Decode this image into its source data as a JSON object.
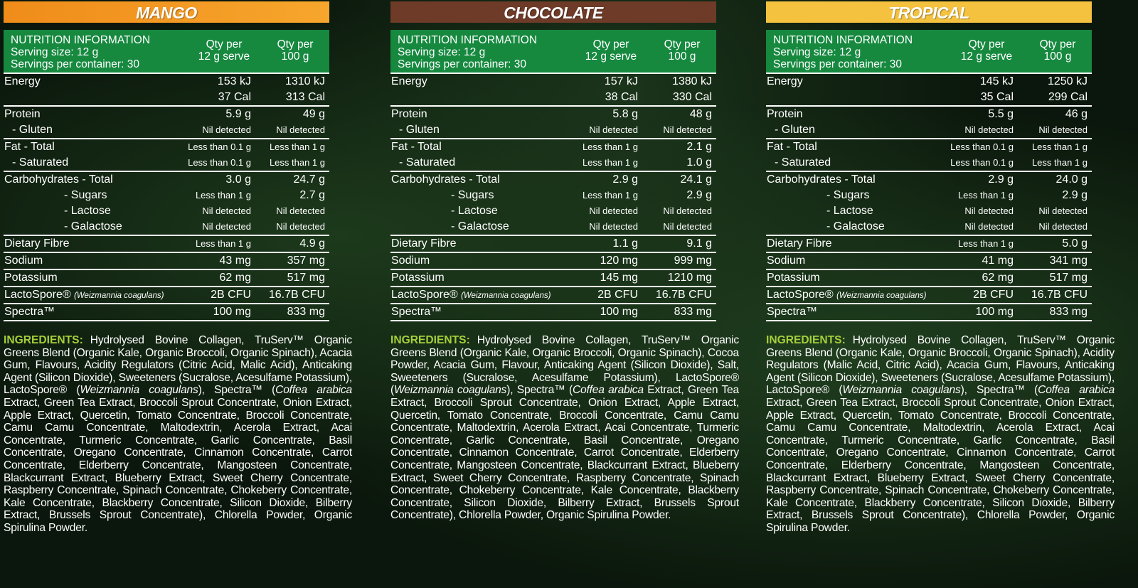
{
  "panels": [
    {
      "title": "MANGO",
      "table": {
        "header": {
          "info": [
            "NUTRITION INFORMATION",
            "Serving size: 12 g",
            "Servings per container: 30"
          ],
          "serve": [
            "Qty per",
            "12 g serve"
          ],
          "per100": [
            "Qty per",
            "100 g"
          ]
        },
        "sections": [
          [
            {
              "label": "Energy",
              "serve": "153 kJ",
              "per100": "1310 kJ"
            },
            {
              "serve": "37 Cal",
              "per100": "313 Cal"
            }
          ],
          [
            {
              "label": "Protein",
              "serve": "5.9 g",
              "per100": "49 g"
            },
            {
              "label": "- Gluten",
              "serve": "Nil detected",
              "per100": "Nil detected"
            }
          ],
          [
            {
              "label": "Fat - Total",
              "serve": "Less than 0.1 g",
              "per100": "Less than 1 g"
            },
            {
              "label": "- Saturated",
              "serve": "Less than 0.1 g",
              "per100": "Less than 1 g"
            }
          ],
          [
            {
              "label": "Carbohydrates  - Total",
              "serve": "3.0 g",
              "per100": "24.7 g"
            },
            {
              "label": "- Sugars",
              "serve": "Less than 1 g",
              "per100": "2.7 g"
            },
            {
              "label": "- Lactose",
              "serve": "Nil detected",
              "per100": "Nil detected"
            },
            {
              "label": "- Galactose",
              "serve": "Nil detected",
              "per100": "Nil detected"
            }
          ],
          [
            {
              "label": "Dietary Fibre",
              "serve": "Less than 1 g",
              "per100": "4.9 g"
            }
          ],
          [
            {
              "label": "Sodium",
              "serve": "43 mg",
              "per100": "357 mg"
            }
          ],
          [
            {
              "label": "Potassium",
              "serve": "62 mg",
              "per100": "517 mg"
            }
          ],
          [
            {
              "label": "LactoSpore®",
              "note": "(Weizmannia coagulans)",
              "serve": "2B CFU",
              "per100": "16.7B CFU"
            }
          ],
          [
            {
              "label": "Spectra™",
              "serve": "100 mg",
              "per100": "833 mg"
            }
          ]
        ]
      },
      "ingredients": {
        "label": "INGREDIENTS:",
        "text": [
          "Hydrolysed Bovine Collagen, TruServ™ Organic Greens Blend (Organic Kale, Organic Broccoli, Organic Spinach), Acacia Gum, Flavours, Acidity Regulators (Citric Acid, Malic Acid), Anticaking Agent (Silicon Dioxide), Sweeteners (Sucralose, Acesulfame Potassium), LactoSpore® (",
          {
            "text": "Weizmannia coagulans",
            "italic": true
          },
          "), Spectra™ (",
          {
            "text": "Coffea arabica",
            "italic": true
          },
          " Extract, Green Tea Extract, Broccoli Sprout Concentrate, Onion Extract, Apple Extract, Quercetin, Tomato Concentrate, Broccoli Concentrate, Camu Camu Concentrate, Maltodextrin, Acerola Extract, Acai Concentrate, Turmeric Concentrate, Garlic Concentrate, Basil Concentrate, Oregano Concentrate, Cinnamon Concentrate, Carrot Concentrate, Elderberry Concentrate, Mangosteen Concentrate, Blackcurrant Extract, Blueberry Extract, Sweet Cherry Concentrate, Raspberry Concentrate, Spinach Concentrate, Chokeberry Concentrate, Kale Concentrate, Blackberry Concentrate, Silicon Dioxide, Bilberry Extract, Brussels Sprout Concentrate), Chlorella Powder, Organic Spirulina Powder."
        ]
      }
    },
    {
      "title": "CHOCOLATE",
      "table": {
        "header": {
          "info": [
            "NUTRITION INFORMATION",
            "Serving size: 12 g",
            "Servings per container: 30"
          ],
          "serve": [
            "Qty per",
            "12 g serve"
          ],
          "per100": [
            "Qty per",
            "100 g"
          ]
        },
        "sections": [
          [
            {
              "label": "Energy",
              "serve": "157 kJ",
              "per100": "1380 kJ"
            },
            {
              "serve": "38 Cal",
              "per100": "330 Cal"
            }
          ],
          [
            {
              "label": "Protein",
              "serve": "5.8 g",
              "per100": "48 g"
            },
            {
              "label": "- Gluten",
              "serve": "Nil detected",
              "per100": "Nil detected"
            }
          ],
          [
            {
              "label": "Fat - Total",
              "serve": "Less than 1 g",
              "per100": "2.1 g"
            },
            {
              "label": "- Saturated",
              "serve": "Less than 1 g",
              "per100": "1.0 g"
            }
          ],
          [
            {
              "label": "Carbohydrates  - Total",
              "serve": "2.9 g",
              "per100": "24.1 g"
            },
            {
              "label": "- Sugars",
              "serve": "Less than 1 g",
              "per100": "2.9 g"
            },
            {
              "label": "- Lactose",
              "serve": "Nil detected",
              "per100": "Nil detected"
            },
            {
              "label": "- Galactose",
              "serve": "Nil detected",
              "per100": "Nil detected"
            }
          ],
          [
            {
              "label": "Dietary Fibre",
              "serve": "1.1 g",
              "per100": "9.1 g"
            }
          ],
          [
            {
              "label": "Sodium",
              "serve": "120 mg",
              "per100": "999 mg"
            }
          ],
          [
            {
              "label": "Potassium",
              "serve": "145 mg",
              "per100": "1210 mg"
            }
          ],
          [
            {
              "label": "LactoSpore®",
              "note": "(Weizmannia coagulans)",
              "serve": "2B CFU",
              "per100": "16.7B CFU"
            }
          ],
          [
            {
              "label": "Spectra™",
              "serve": "100 mg",
              "per100": "833 mg"
            }
          ]
        ]
      },
      "ingredients": {
        "label": "INGREDIENTS:",
        "text": [
          "Hydrolysed Bovine Collagen, TruServ™ Organic Greens Blend (Organic Kale, Organic Broccoli, Organic Spinach), Cocoa Powder, Acacia Gum, Flavour, Anticaking Agent (Silicon Dioxide), Salt, Sweeteners (Sucralose, Acesulfame Potassium), LactoSpore® (",
          {
            "text": "Weizmannia coagulans",
            "italic": true
          },
          "), Spectra™ (",
          {
            "text": "Coffea arabica",
            "italic": true
          },
          " Extract, Green Tea Extract, Broccoli Sprout Concentrate, Onion Extract, Apple Extract, Quercetin, Tomato Concentrate, Broccoli Concentrate, Camu Camu Concentrate, Maltodextrin, Acerola Extract, Acai Concentrate, Turmeric Concentrate, Garlic Concentrate, Basil Concentrate, Oregano Concentrate, Cinnamon Concentrate, Carrot Concentrate, Elderberry Concentrate, Mangosteen Concentrate, Blackcurrant Extract, Blueberry Extract, Sweet Cherry Concentrate, Raspberry Concentrate, Spinach Concentrate, Chokeberry Concentrate, Kale Concentrate, Blackberry Concentrate, Silicon Dioxide, Bilberry Extract, Brussels Sprout Concentrate), Chlorella Powder, Organic Spirulina Powder."
        ]
      }
    },
    {
      "title": "TROPICAL",
      "table": {
        "header": {
          "info": [
            "NUTRITION INFORMATION",
            "Serving size: 12 g",
            "Servings per container: 30"
          ],
          "serve": [
            "Qty per",
            "12 g serve"
          ],
          "per100": [
            "Qty per",
            "100 g"
          ]
        },
        "sections": [
          [
            {
              "label": "Energy",
              "serve": "145 kJ",
              "per100": "1250 kJ"
            },
            {
              "serve": "35 Cal",
              "per100": "299 Cal"
            }
          ],
          [
            {
              "label": "Protein",
              "serve": "5.5 g",
              "per100": "46 g"
            },
            {
              "label": "- Gluten",
              "serve": "Nil detected",
              "per100": "Nil detected"
            }
          ],
          [
            {
              "label": "Fat - Total",
              "serve": "Less than 0.1 g",
              "per100": "Less than 1 g"
            },
            {
              "label": "- Saturated",
              "serve": "Less than 0.1 g",
              "per100": "Less than 1 g"
            }
          ],
          [
            {
              "label": "Carbohydrates  - Total",
              "serve": "2.9 g",
              "per100": "24.0 g"
            },
            {
              "label": "- Sugars",
              "serve": "Less than 1 g",
              "per100": "2.9 g"
            },
            {
              "label": "- Lactose",
              "serve": "Nil detected",
              "per100": "Nil detected"
            },
            {
              "label": "- Galactose",
              "serve": "Nil detected",
              "per100": "Nil detected"
            }
          ],
          [
            {
              "label": "Dietary Fibre",
              "serve": "Less than 1 g",
              "per100": "5.0 g"
            }
          ],
          [
            {
              "label": "Sodium",
              "serve": "41 mg",
              "per100": "341 mg"
            }
          ],
          [
            {
              "label": "Potassium",
              "serve": "62 mg",
              "per100": "517 mg"
            }
          ],
          [
            {
              "label": "LactoSpore®",
              "note": "(Weizmannia coagulans)",
              "serve": "2B CFU",
              "per100": "16.7B CFU"
            }
          ],
          [
            {
              "label": "Spectra™",
              "serve": "100 mg",
              "per100": "833 mg"
            }
          ]
        ]
      },
      "ingredients": {
        "label": "INGREDIENTS:",
        "text": [
          "Hydrolysed Bovine Collagen, TruServ™ Organic Greens Blend (Organic Kale, Organic Broccoli, Organic Spinach), Acidity Regulators (Malic Acid, Citric Acid), Acacia Gum, Flavours, Anticaking Agent (Silicon Dioxide), Sweeteners (Sucralose, Acesulfame Potassium), LactoSpore® (",
          {
            "text": "Weizmannia coagulans",
            "italic": true
          },
          "), Spectra™ (",
          {
            "text": "Coffea arabica",
            "italic": true
          },
          " Extract, Green Tea Extract, Broccoli Sprout Concentrate, Onion Extract, Apple Extract, Quercetin, Tomato Concentrate, Broccoli Concentrate, Camu Camu Concentrate, Maltodextrin, Acerola Extract, Acai Concentrate, Turmeric Concentrate, Garlic Concentrate, Basil Concentrate, Oregano Concentrate, Cinnamon Concentrate, Carrot Concentrate, Elderberry Concentrate, Mangosteen Concentrate, Blackcurrant Extract, Blueberry Extract, Sweet Cherry Concentrate, Raspberry Concentrate, Spinach Concentrate, Chokeberry Concentrate, Kale Concentrate, Blackberry Concentrate, Silicon Dioxide, Bilberry Extract, Brussels Sprout Concentrate), Chlorella Powder, Organic Spirulina Powder."
        ]
      }
    }
  ]
}
